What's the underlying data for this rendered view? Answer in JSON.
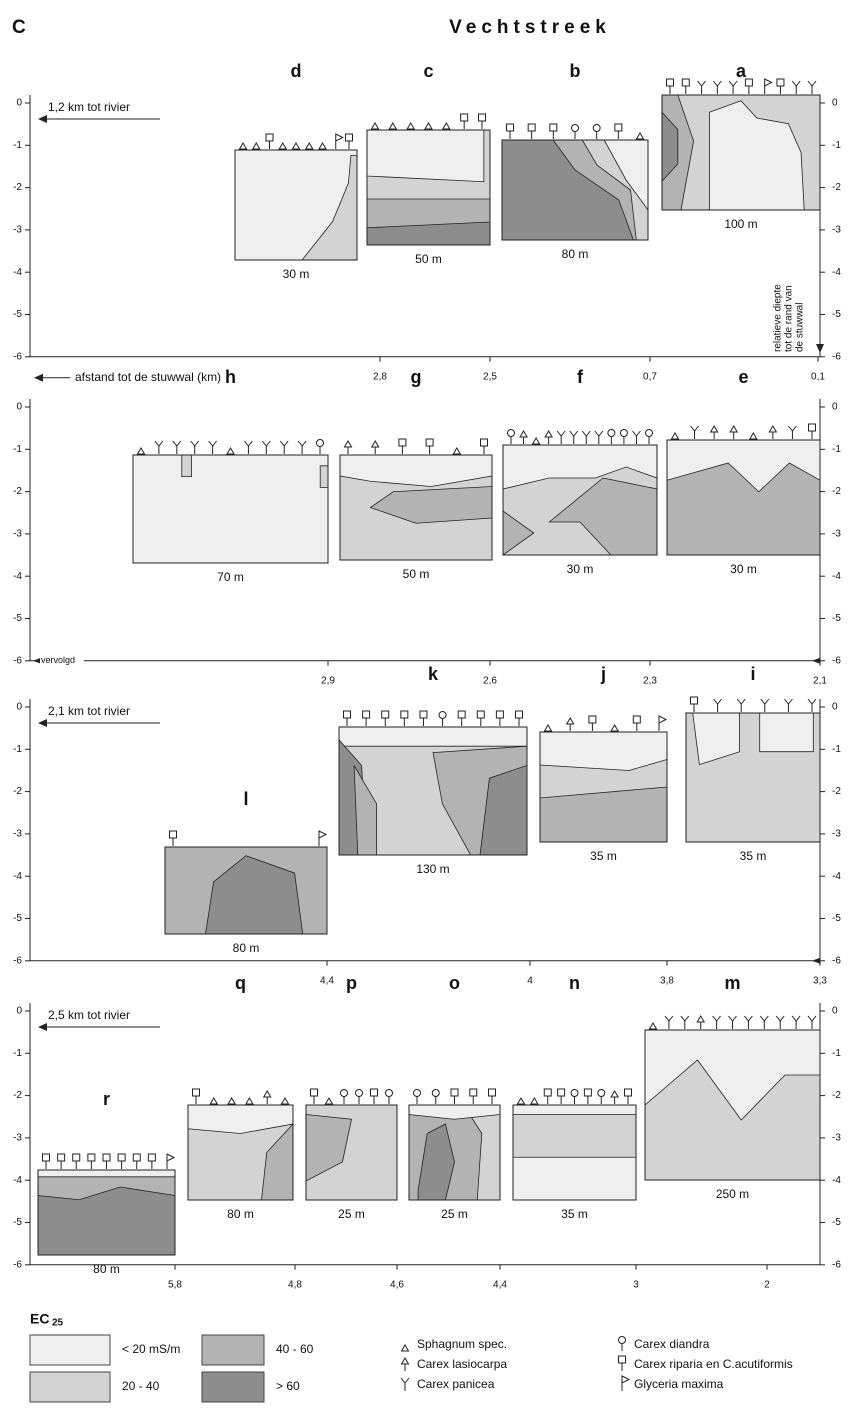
{
  "header": {
    "letter": "C",
    "title": "Vechtstreek"
  },
  "depth_ticks": [
    0,
    -1,
    -2,
    -3,
    -4,
    -5,
    -6
  ],
  "panels": [
    {
      "annotation": "1,2 km tot rivier",
      "x_axis_label": "afstand tot de stuwwal (km)",
      "x_ticks": [
        "2,8",
        "2,5",
        "0,7",
        "0,1"
      ],
      "depth_label": [
        "relatieve diepte",
        "tot de rand van",
        "de stuwwal"
      ],
      "profiles": [
        {
          "label": "d",
          "width": "30 m"
        },
        {
          "label": "c",
          "width": "50 m"
        },
        {
          "label": "b",
          "width": "80 m"
        },
        {
          "label": "a",
          "width": "100 m"
        }
      ]
    },
    {
      "annotation": "vervolgd",
      "x_ticks": [
        "2,9",
        "2,6",
        "2,3",
        "2,1"
      ],
      "profiles": [
        {
          "label": "h",
          "width": "70 m"
        },
        {
          "label": "g",
          "width": "50 m"
        },
        {
          "label": "f",
          "width": "30 m"
        },
        {
          "label": "e",
          "width": "30 m"
        }
      ]
    },
    {
      "annotation": "2,1 km tot rivier",
      "x_ticks": [
        "4,4",
        "4",
        "3,8",
        "3,3"
      ],
      "profiles": [
        {
          "label": "l",
          "width": "80 m"
        },
        {
          "label": "k",
          "width": "130 m"
        },
        {
          "label": "j",
          "width": "35 m"
        },
        {
          "label": "i",
          "width": "35 m"
        }
      ]
    },
    {
      "annotation": "2,5 km tot rivier",
      "x_ticks": [
        "5,8",
        "4,8",
        "4,6",
        "4,4",
        "3",
        "2"
      ],
      "profiles": [
        {
          "label": "r",
          "width": "80 m"
        },
        {
          "label": "q",
          "width": "80 m"
        },
        {
          "label": "p",
          "width": "25 m"
        },
        {
          "label": "o",
          "width": "25 m"
        },
        {
          "label": "n",
          "width": "35 m"
        },
        {
          "label": "m",
          "width": "250 m"
        }
      ]
    }
  ],
  "legend": {
    "title": "EC",
    "title_sub": "25",
    "classes": [
      "< 20 mS/m",
      "20 - 40",
      "40 - 60",
      "> 60"
    ],
    "species": [
      "Sphagnum spec.",
      "Carex lasiocarpa",
      "Carex panicea",
      "Carex diandra",
      "Carex riparia en C.acutiformis",
      "Glyceria maxima"
    ]
  }
}
